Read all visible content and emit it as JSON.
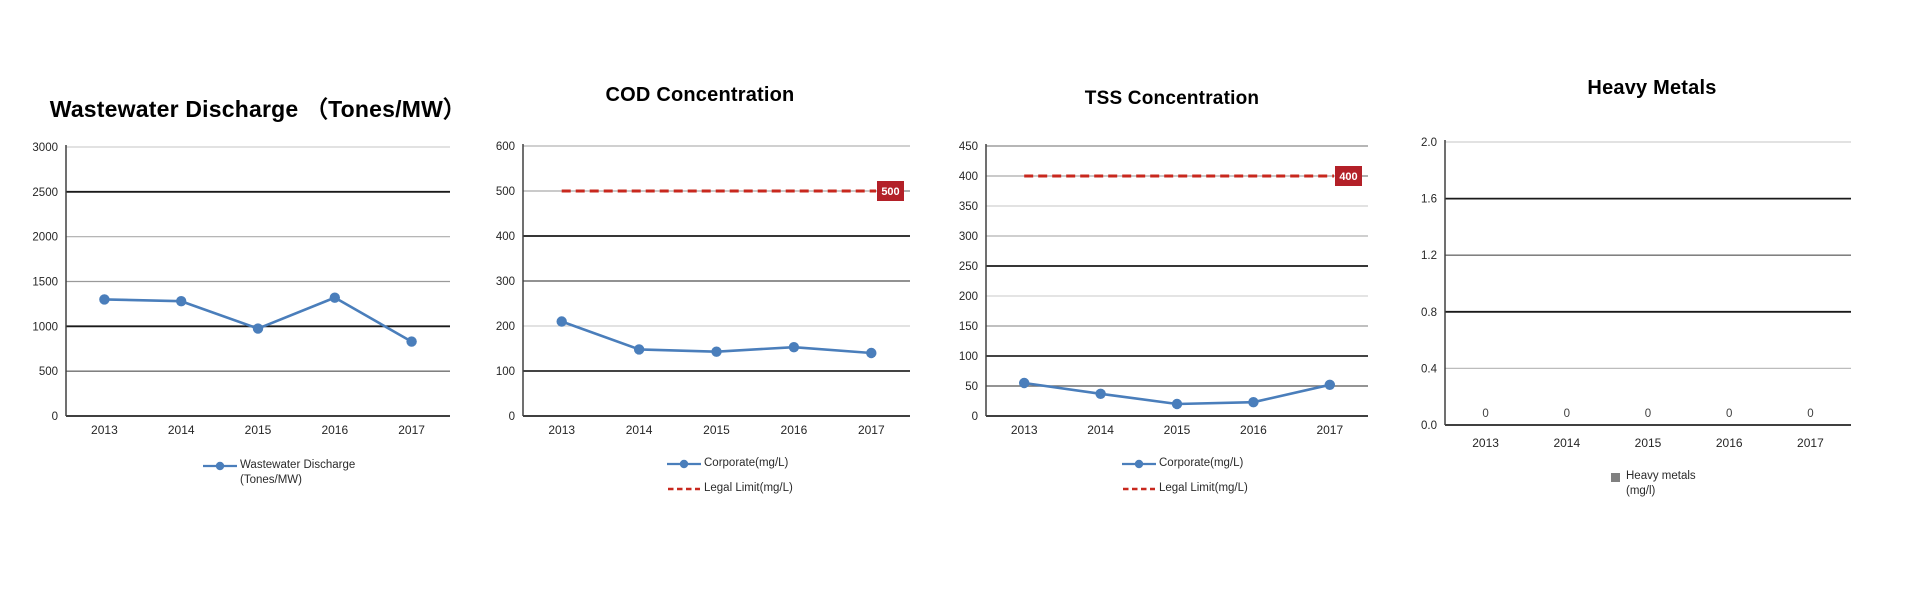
{
  "page": {
    "background": "#ffffff"
  },
  "colors": {
    "series_blue": "#4A7EBB",
    "limit_red": "#C8281E",
    "limit_label_bg": "#B32028",
    "limit_label_text": "#FFFFFF",
    "axis": "#404040",
    "tick_text": "#262626",
    "data_label_text": "#404040",
    "heavy_metals_gray": "#808080"
  },
  "chart_data": [
    {
      "type": "line",
      "title": "Wastewater Discharge （Tones/MW）",
      "categories": [
        "2013",
        "2014",
        "2015",
        "2016",
        "2017"
      ],
      "series": [
        {
          "name": "Wastewater Discharge (Tones/MW)",
          "style": "line-marker",
          "color_key": "series_blue",
          "values": [
            1300,
            1280,
            975,
            1320,
            830
          ]
        }
      ],
      "xlabel": "",
      "ylabel": "",
      "ylim": [
        0,
        3000
      ],
      "ytick_step": 500,
      "ytick_labels": [
        "0",
        "500",
        "1000",
        "1500",
        "2000",
        "2500",
        "3000"
      ],
      "grid": true,
      "legend_position": "bottom",
      "legend": [
        {
          "swatch": "line-marker",
          "color_key": "series_blue",
          "label_lines": [
            "Wastewater Discharge",
            "(Tones/MW)"
          ]
        }
      ]
    },
    {
      "type": "line",
      "title": "COD Concentration",
      "categories": [
        "2013",
        "2014",
        "2015",
        "2016",
        "2017"
      ],
      "series": [
        {
          "name": "Corporate(mg/L)",
          "style": "line-marker",
          "color_key": "series_blue",
          "values": [
            210,
            148,
            143,
            153,
            140
          ]
        },
        {
          "name": "Legal Limit(mg/L)",
          "style": "dashed",
          "color_key": "limit_red",
          "values": [
            500,
            500,
            500,
            500,
            500
          ],
          "end_label": "500"
        }
      ],
      "xlabel": "",
      "ylabel": "",
      "ylim": [
        0,
        600
      ],
      "ytick_step": 100,
      "ytick_labels": [
        "0",
        "100",
        "200",
        "300",
        "400",
        "500",
        "600"
      ],
      "grid": true,
      "legend_position": "bottom",
      "legend": [
        {
          "swatch": "line-marker",
          "color_key": "series_blue",
          "label_lines": [
            "Corporate(mg/L)"
          ]
        },
        {
          "swatch": "dashed",
          "color_key": "limit_red",
          "label_lines": [
            "Legal Limit(mg/L)"
          ]
        }
      ]
    },
    {
      "type": "line",
      "title": "TSS Concentration",
      "categories": [
        "2013",
        "2014",
        "2015",
        "2016",
        "2017"
      ],
      "series": [
        {
          "name": "Corporate(mg/L)",
          "style": "line-marker",
          "color_key": "series_blue",
          "values": [
            55,
            37,
            20,
            23,
            52
          ]
        },
        {
          "name": "Legal Limit(mg/L)",
          "style": "dashed",
          "color_key": "limit_red",
          "values": [
            400,
            400,
            400,
            400,
            400
          ],
          "end_label": "400"
        }
      ],
      "xlabel": "",
      "ylabel": "",
      "ylim": [
        0,
        450
      ],
      "ytick_step": 50,
      "ytick_labels": [
        "0",
        "50",
        "100",
        "150",
        "200",
        "250",
        "300",
        "350",
        "400",
        "450"
      ],
      "grid": true,
      "legend_position": "bottom",
      "legend": [
        {
          "swatch": "line-marker",
          "color_key": "series_blue",
          "label_lines": [
            "Corporate(mg/L)"
          ]
        },
        {
          "swatch": "dashed",
          "color_key": "limit_red",
          "label_lines": [
            "Legal Limit(mg/L)"
          ]
        }
      ]
    },
    {
      "type": "bar",
      "title": "Heavy Metals",
      "categories": [
        "2013",
        "2014",
        "2015",
        "2016",
        "2017"
      ],
      "series": [
        {
          "name": "Heavy metals (mg/l)",
          "style": "bar",
          "color_key": "heavy_metals_gray",
          "values": [
            0,
            0,
            0,
            0,
            0
          ],
          "data_labels": [
            "0",
            "0",
            "0",
            "0",
            "0"
          ]
        }
      ],
      "xlabel": "",
      "ylabel": "",
      "ylim": [
        0,
        2.0
      ],
      "ytick_step": 0.4,
      "ytick_labels": [
        "0.0",
        "0.4",
        "0.8",
        "1.2",
        "1.6",
        "2.0"
      ],
      "grid": true,
      "legend_position": "bottom",
      "legend": [
        {
          "swatch": "square",
          "color_key": "heavy_metals_gray",
          "label_lines": [
            "Heavy metals",
            "(mg/l)"
          ]
        }
      ]
    }
  ]
}
